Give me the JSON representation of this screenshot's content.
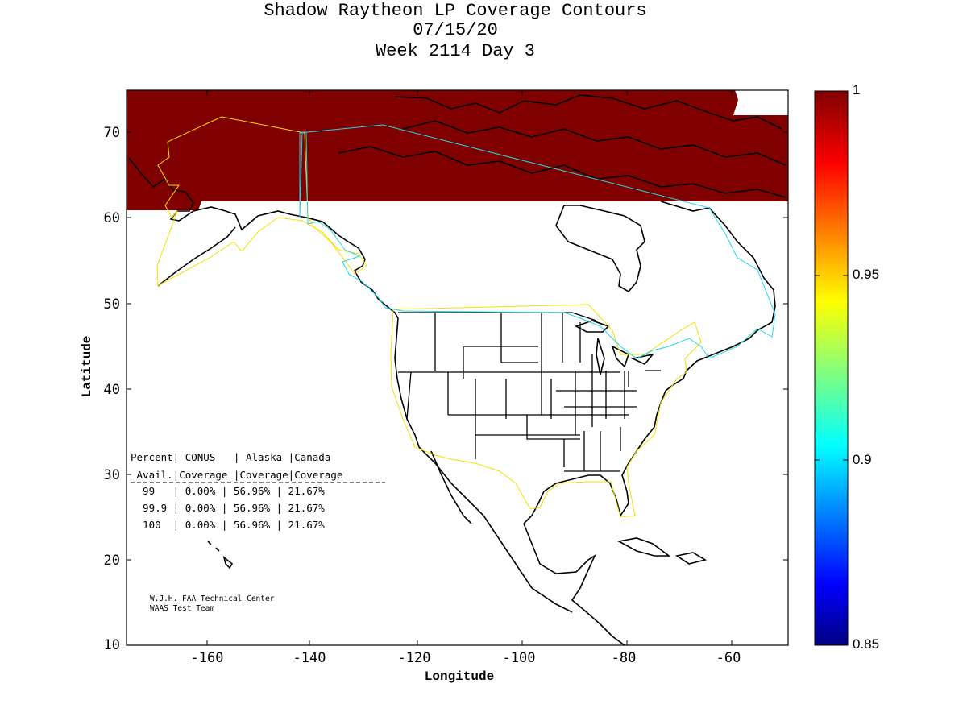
{
  "title": {
    "line1": "Shadow Raytheon LP Coverage Contours",
    "line2": "07/15/20",
    "line3": "Week 2114 Day 3"
  },
  "axes": {
    "xlabel": "Longitude",
    "ylabel": "Latitude",
    "xticks": [
      "-160",
      "-140",
      "-120",
      "-100",
      "-80",
      "-60"
    ],
    "yticks": [
      "70",
      "60",
      "50",
      "40",
      "30",
      "20",
      "10"
    ],
    "xlim": [
      -175,
      -50
    ],
    "ylim": [
      10,
      75
    ]
  },
  "colorbar": {
    "ticks": [
      "1",
      "0.95",
      "0.9",
      "0.85"
    ],
    "range": [
      0.85,
      1
    ],
    "colormap": "jet"
  },
  "coverage_table": {
    "header1": "Percent| CONUS   | Alaska |Canada",
    "header2": " Avail.|Coverage |Coverage|Coverage",
    "rows": [
      "  99   | 0.00% | 56.96% | 21.67%",
      "  99.9 | 0.00% | 56.96% | 21.67%",
      "  100  | 0.00% | 56.96% | 21.67%"
    ]
  },
  "credits": {
    "line1": "W.J.H. FAA Technical Center",
    "line2": "WAAS Test Team"
  },
  "colors": {
    "full_coverage": "#800000",
    "alaska_boundary": "#f5e000",
    "canada_boundary": "#20d8e8",
    "coastline": "#000000"
  }
}
